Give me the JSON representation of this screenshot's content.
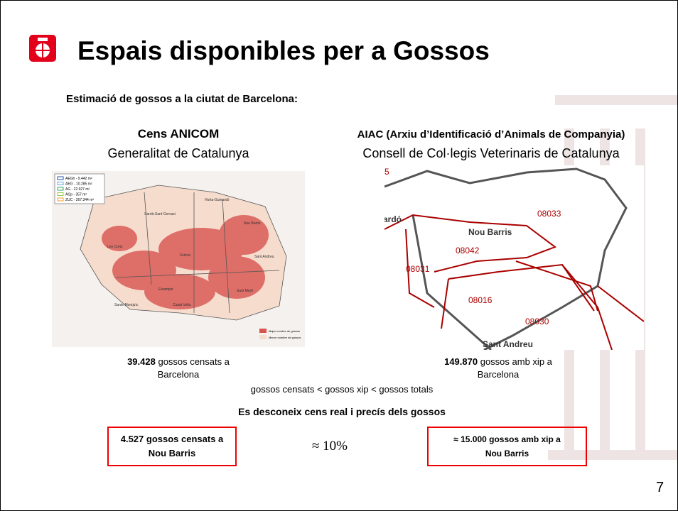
{
  "header": {
    "title": "Espais disponibles per a Gossos",
    "subtitle": "Estimació de gossos a la ciutat de Barcelona:"
  },
  "left": {
    "heading": "Cens ANICOM",
    "source": "Generalitat de Catalunya",
    "map": {
      "legend": [
        "AEGh - 9.442 m²",
        "AEG - 10.285 m²",
        "AG - 22.927 m²",
        "AGp - 357 m²",
        "ZUC - 267.344 m²"
      ],
      "districts": [
        "Sarrià-Sant Gervasi",
        "Horta-Guinardó",
        "Nou Barris",
        "Les Corts",
        "Gràcia",
        "Sant Andreu",
        "Eixample",
        "Sant Martí",
        "Ciutat Vella",
        "Sants-Montjuïc"
      ],
      "scale": [
        "Major nombre de gossos",
        "Menor nombre de gossos"
      ]
    },
    "caption": {
      "value": "39.428",
      "text": "gossos censats a",
      "line2": "Barcelona"
    }
  },
  "right": {
    "heading": "AIAC (Arxiu d’Identificació d’Animals de Companyia)",
    "source": "Consell de Col·legis Veterinaris de Catalunya",
    "map": {
      "labels": [
        "5",
        "ardó",
        "08033",
        "Nou Barris",
        "08042",
        "08031",
        "08016",
        "08030",
        "Sant Andreu"
      ]
    },
    "caption": {
      "value": "149.870",
      "text": "gossos amb xip a",
      "line2": "Barcelona"
    }
  },
  "comparison": "gossos censats < gossos xip < gossos totals",
  "note": "Es desconeix cens real i precís dels gossos",
  "boxes": [
    {
      "line1": "4.527 gossos censats a",
      "line2": "Nou Barris"
    },
    {
      "line1": "≈ 15.000 gossos amb xip a",
      "line2": "Nou Barris"
    }
  ],
  "ratio": "≈ 10%",
  "page_number": "7"
}
